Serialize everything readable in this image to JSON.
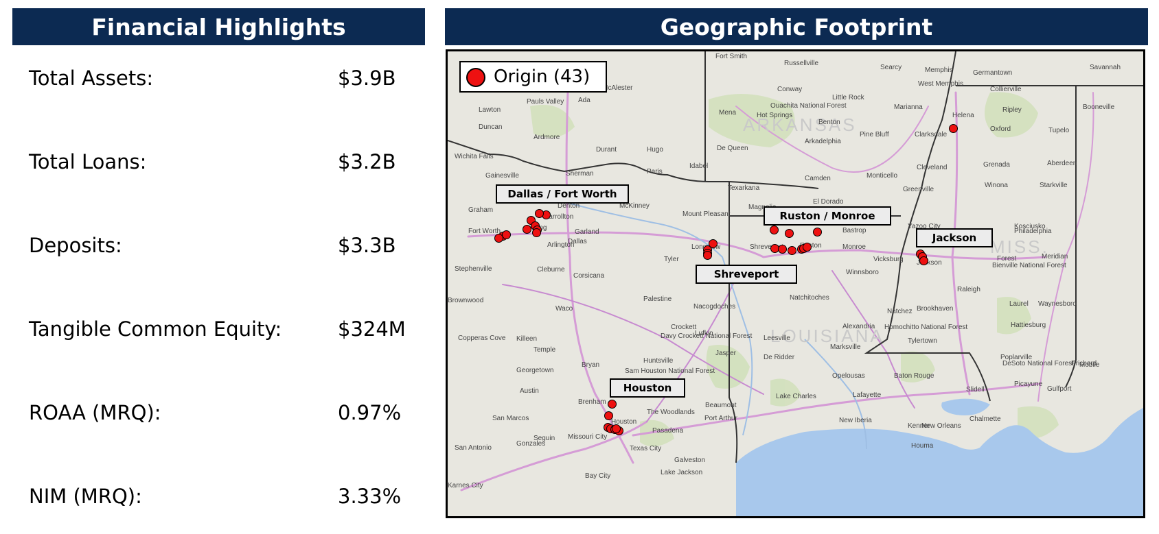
{
  "left_panel": {
    "title": "Financial Highlights",
    "metrics": [
      {
        "label": "Total Assets:",
        "value": "$3.9B"
      },
      {
        "label": "Total Loans:",
        "value": "$3.2B"
      },
      {
        "label": "Deposits:",
        "value": "$3.3B"
      },
      {
        "label": "Tangible Common Equity:",
        "value": "$324M"
      },
      {
        "label": "ROAA (MRQ):",
        "value": "0.97%"
      },
      {
        "label": "NIM (MRQ):",
        "value": "3.33%"
      }
    ]
  },
  "right_panel": {
    "title": "Geographic Footprint",
    "legend": {
      "label": "Origin (43)",
      "marker_color": "#ee1111"
    },
    "markets": [
      "Dallas / Fort Worth",
      "Ruston / Monroe",
      "Jackson",
      "Shreveport",
      "Houston"
    ],
    "state_labels": [
      "ARKANSAS",
      "MISS.",
      "LOUISIANA"
    ],
    "city_labels": [
      "Fort Smith",
      "Russellville",
      "Searcy",
      "Memphis",
      "Germantown",
      "Savannah",
      "West Memphis",
      "Collierville",
      "McAlester",
      "Ouachita National Forest",
      "Conway",
      "Little Rock",
      "Marianna",
      "Booneville",
      "Lawton",
      "Pauls Valley",
      "Ada",
      "Mena",
      "Hot Springs",
      "Benton",
      "Helena",
      "Ripley",
      "Duncan",
      "Arkadelphia",
      "Pine Bluff",
      "Clarksdale",
      "Oxford",
      "Tupelo",
      "Ardmore",
      "Wichita Falls",
      "Durant",
      "Hugo",
      "De Queen",
      "Idabel",
      "Cleveland",
      "Grenada",
      "Aberdeen",
      "Gainesville",
      "Sherman",
      "Paris",
      "Camden",
      "Monticello",
      "Winona",
      "Starkville",
      "Texarkana",
      "El Dorado",
      "Greenville",
      "Denton",
      "McKinney",
      "Magnolia",
      "Graham",
      "Carrollton",
      "Mount Pleasant",
      "Bastrop",
      "Kosciusko",
      "Irving",
      "Garland",
      "Yazoo City",
      "Philadelphia",
      "Fort Worth",
      "Arlington",
      "Dallas",
      "Shreveport",
      "Ruston",
      "Monroe",
      "Vicksburg",
      "Longview",
      "Tyler",
      "Jackson",
      "Forest",
      "Meridian",
      "Stephenville",
      "Cleburne",
      "Winnsboro",
      "Corsicana",
      "Bienville National Forest",
      "Raleigh",
      "Brownwood",
      "Palestine",
      "Natchitoches",
      "Waco",
      "Nacogdoches",
      "Laurel",
      "Waynesboro",
      "Natchez",
      "Brookhaven",
      "Crockett",
      "Alexandria",
      "Lufkin",
      "Davy Crockett National Forest",
      "Homochitto National Forest",
      "Hattiesburg",
      "Copperas Cove",
      "Killeen",
      "Temple",
      "Leesville",
      "Marksville",
      "Jasper",
      "Tylertown",
      "De Ridder",
      "Huntsville",
      "Georgetown",
      "Bryan",
      "Opelousas",
      "Baton Rouge",
      "Poplarville",
      "DeSoto National Forest",
      "Picayune",
      "Prichard",
      "Mobile",
      "Sam Houston National Forest",
      "Austin",
      "Lake Charles",
      "Lafayette",
      "Gulfport",
      "Slidell",
      "The Woodlands",
      "Beaumont",
      "Port Arthur",
      "Brenham",
      "Houston",
      "San Marcos",
      "New Iberia",
      "Kenner",
      "Chalmette",
      "New Orleans",
      "Missouri City",
      "Pasadena",
      "Seguin",
      "San Antonio",
      "Gonzales",
      "Texas City",
      "Galveston",
      "Houma",
      "Bay City",
      "Lake Jackson",
      "Karnes City"
    ]
  }
}
